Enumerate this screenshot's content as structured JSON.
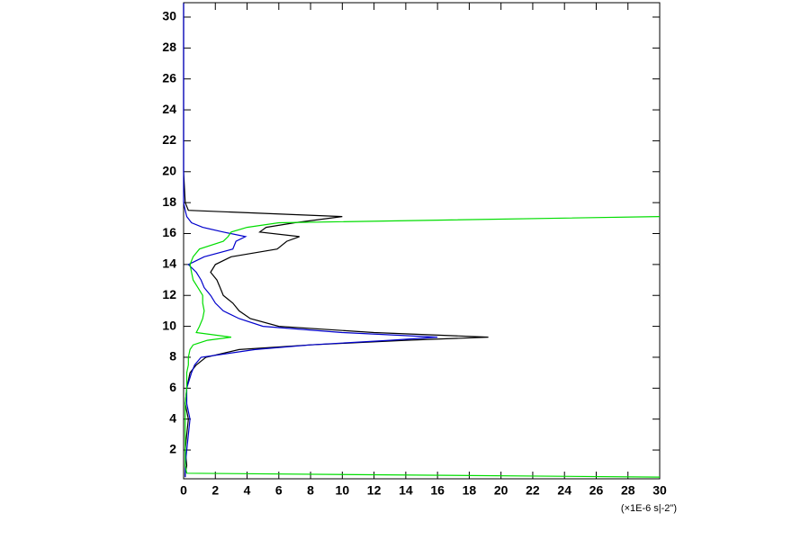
{
  "chart_data": {
    "type": "line",
    "x_label": "(×1E-6 s|-2\")",
    "y": [
      0.25,
      0.5,
      1,
      2,
      3,
      4,
      5,
      6,
      7,
      7.5,
      8,
      8.5,
      8.8,
      9.1,
      9.3,
      9.6,
      10,
      10.5,
      11,
      11.5,
      12,
      12.5,
      13,
      13.5,
      14,
      14.5,
      15,
      15.5,
      15.8,
      16.1,
      16.4,
      16.7,
      17.1,
      17.5,
      18,
      20,
      25,
      30.9
    ],
    "series": [
      {
        "color": "#000000",
        "values": [
          0.1,
          0.1,
          0.2,
          0.1,
          0.2,
          0.3,
          0.1,
          0.2,
          0.4,
          0.8,
          1.4,
          3.5,
          8,
          14,
          19.2,
          12,
          6,
          4.2,
          3.5,
          3.1,
          2.5,
          2.3,
          2.1,
          1.7,
          2.0,
          3.0,
          5.9,
          6.5,
          7.3,
          4.8,
          5.2,
          7,
          10,
          0.3,
          0.1,
          0,
          0,
          0
        ]
      },
      {
        "color": "#0000cc",
        "values": [
          0.1,
          0.1,
          0.1,
          0.2,
          0.3,
          0.4,
          0.2,
          0.2,
          0.5,
          0.7,
          1.1,
          4.5,
          8,
          13,
          16,
          10,
          5,
          3.5,
          2.5,
          2.0,
          1.7,
          1.3,
          1.1,
          0.8,
          0.3,
          1.3,
          3.1,
          3.3,
          3.9,
          2.5,
          1.2,
          0.5,
          0.2,
          0.1,
          0,
          0,
          0,
          0
        ]
      },
      {
        "color": "#00dd00",
        "values": [
          30,
          0.2,
          0.1,
          0.1,
          0.1,
          0.1,
          0.1,
          0.2,
          0.2,
          0.3,
          0.3,
          0.4,
          0.6,
          1.5,
          3.0,
          0.8,
          1.0,
          1.2,
          1.3,
          1.2,
          1.2,
          0.9,
          0.6,
          0.5,
          0.4,
          0.6,
          1.0,
          2.5,
          2.8,
          3.0,
          4,
          6,
          30,
          null,
          null,
          null,
          null,
          null
        ]
      }
    ],
    "xlim": [
      0,
      30
    ],
    "xticks": [
      0,
      2,
      4,
      6,
      8,
      10,
      12,
      14,
      16,
      18,
      20,
      22,
      24,
      26,
      28,
      30
    ],
    "ylim": [
      0.14,
      30.93
    ],
    "yticks": [
      2,
      4,
      6,
      8,
      10,
      12,
      14,
      16,
      18,
      20,
      22,
      24,
      26,
      28,
      30
    ]
  }
}
